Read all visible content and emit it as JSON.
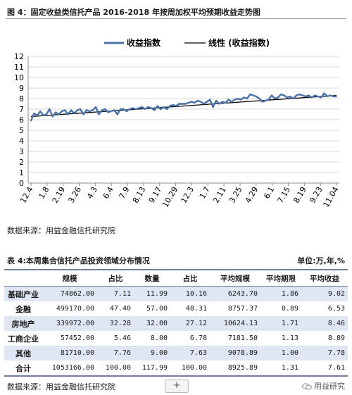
{
  "figure": {
    "title": "图 4：固定收益类信托产品 2016-2018 年按周加权平均预期收益走势图",
    "source": "数据来源：用益金融信托研究院"
  },
  "chart_data": {
    "type": "line",
    "legend": {
      "position": "top",
      "entries": [
        "收益指数",
        "线性 (收益指数)"
      ]
    },
    "ylim": [
      0,
      12
    ],
    "y_ticks": [
      0,
      1,
      2,
      3,
      4,
      5,
      6,
      7,
      8,
      9,
      10,
      11,
      12
    ],
    "x_tick_labels": [
      "12.4",
      "1.8",
      "2.19",
      "3.26",
      "4.3",
      "6.4",
      "7.9",
      "8.13",
      "9.17",
      "10.29",
      "12.3",
      "1.7",
      "2.11",
      "3.25",
      "4.29",
      "6.1",
      "7.15",
      "8.19",
      "9.23",
      "11.04"
    ],
    "grid": true,
    "series": [
      {
        "name": "收益指数",
        "color": "#4a72a6",
        "values": [
          5.9,
          6.6,
          6.4,
          6.8,
          6.4,
          6.5,
          7.0,
          6.3,
          6.7,
          6.5,
          6.8,
          6.9,
          6.5,
          6.9,
          6.6,
          6.9,
          7.0,
          6.5,
          6.9,
          6.8,
          6.9,
          7.2,
          6.5,
          6.9,
          7.0,
          6.7,
          6.8,
          6.9,
          6.5,
          7.0,
          7.0,
          6.8,
          7.0,
          7.1,
          7.0,
          7.1,
          7.2,
          7.0,
          7.2,
          7.1,
          6.9,
          7.3,
          7.0,
          7.2,
          7.0,
          7.3,
          7.4,
          7.3,
          7.5,
          7.5,
          7.5,
          7.6,
          7.7,
          7.6,
          7.8,
          7.7,
          7.5,
          7.7,
          7.9,
          7.2,
          7.8,
          7.5,
          7.7,
          7.6,
          7.9,
          7.7,
          7.9,
          8.0,
          7.9,
          8.1,
          8.0,
          8.4,
          8.3,
          8.2,
          8.0,
          7.7,
          7.8,
          7.9,
          8.3,
          8.0,
          8.1,
          8.4,
          8.3,
          8.1,
          8.2,
          8.0,
          8.3,
          8.4,
          8.3,
          8.2,
          8.3,
          8.1,
          8.3,
          8.2,
          8.1,
          8.5,
          8.2,
          8.3,
          8.2,
          8.2
        ]
      },
      {
        "name": "线性 (收益指数)",
        "color": "#000000",
        "trend": [
          6.3,
          8.3
        ]
      }
    ]
  },
  "table": {
    "title": "表 4:本周集合信托产品投资领域分布情况",
    "unit": "单位:万,年,%",
    "headers": [
      "",
      "规模",
      "占比",
      "数量",
      "占比",
      "平均规模",
      "平均期限",
      "平均收益"
    ],
    "rows": [
      [
        "基础产业",
        "74862.00",
        "7.11",
        "11.99",
        "10.16",
        "6243.70",
        "1.86",
        "9.02"
      ],
      [
        "金融",
        "499170.00",
        "47.40",
        "57.00",
        "48.31",
        "8757.37",
        "0.89",
        "6.53"
      ],
      [
        "房地产",
        "339972.00",
        "32.28",
        "32.00",
        "27.12",
        "10624.13",
        "1.71",
        "8.46"
      ],
      [
        "工商企业",
        "57452.00",
        "5.46",
        "8.00",
        "6.78",
        "7181.50",
        "1.13",
        "8.89"
      ],
      [
        "其他",
        "81710.00",
        "7.76",
        "9.00",
        "7.63",
        "9078.89",
        "1.00",
        "7.78"
      ],
      [
        "合计",
        "1053166.00",
        "100.00",
        "117.99",
        "100.00",
        "8925.89",
        "1.31",
        "7.61"
      ]
    ],
    "source": "数据来源：用益金融信托研究院"
  },
  "ui": {
    "add_button_label": "+",
    "watermark": "用益研究"
  }
}
